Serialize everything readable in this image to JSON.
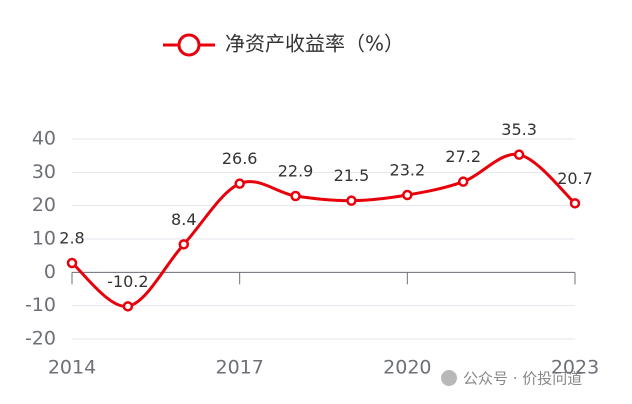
{
  "chart_data": {
    "type": "line",
    "categories": [
      "2014",
      null,
      null,
      "2017",
      null,
      null,
      "2020",
      null,
      null,
      "2023"
    ],
    "series": [
      {
        "name": "净资产收益率（%）",
        "color": "#e8000b",
        "values": [
          2.8,
          -10.2,
          8.4,
          26.6,
          22.9,
          21.5,
          23.2,
          27.2,
          35.3,
          20.7
        ]
      }
    ],
    "ylim": [
      -20,
      40
    ],
    "yticks": [
      -20,
      -10,
      0,
      10,
      20,
      30,
      40
    ],
    "grid": true,
    "smooth": true,
    "legend": "top"
  },
  "watermark": "公众号 · 价投问道"
}
